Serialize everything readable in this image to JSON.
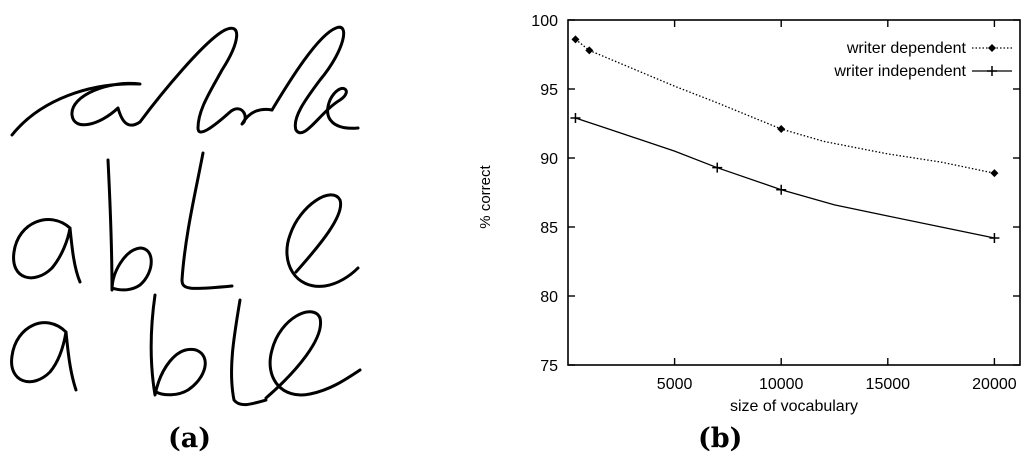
{
  "panel_a": {
    "caption": "(a)",
    "handwriting_samples": [
      "able",
      "able",
      "able"
    ]
  },
  "panel_b": {
    "caption": "(b)"
  },
  "chart_data": {
    "type": "line",
    "title": "",
    "xlabel": "size of vocabulary",
    "ylabel": "% correct",
    "xlim": [
      0,
      21200
    ],
    "ylim": [
      75,
      100
    ],
    "xticks": [
      5000,
      10000,
      15000,
      20000
    ],
    "yticks": [
      75,
      80,
      85,
      90,
      95,
      100
    ],
    "grid": false,
    "legend": "top-right",
    "series": [
      {
        "name": "writer dependent",
        "style": "dotted",
        "marker": "diamond",
        "markers_x": [
          350,
          1000,
          10000,
          20000
        ],
        "x": [
          350,
          1000,
          3000,
          5000,
          7000,
          10000,
          12000,
          15000,
          17500,
          20000
        ],
        "y": [
          98.6,
          97.8,
          96.5,
          95.2,
          94.0,
          92.1,
          91.2,
          90.3,
          89.7,
          88.9
        ]
      },
      {
        "name": "writer independent",
        "style": "solid",
        "marker": "plus",
        "markers_x": [
          350,
          7000,
          10000,
          20000
        ],
        "x": [
          350,
          2500,
          5000,
          7000,
          10000,
          12500,
          15000,
          17500,
          20000
        ],
        "y": [
          92.9,
          91.8,
          90.5,
          89.3,
          87.7,
          86.6,
          85.8,
          85.0,
          84.2
        ]
      }
    ]
  }
}
